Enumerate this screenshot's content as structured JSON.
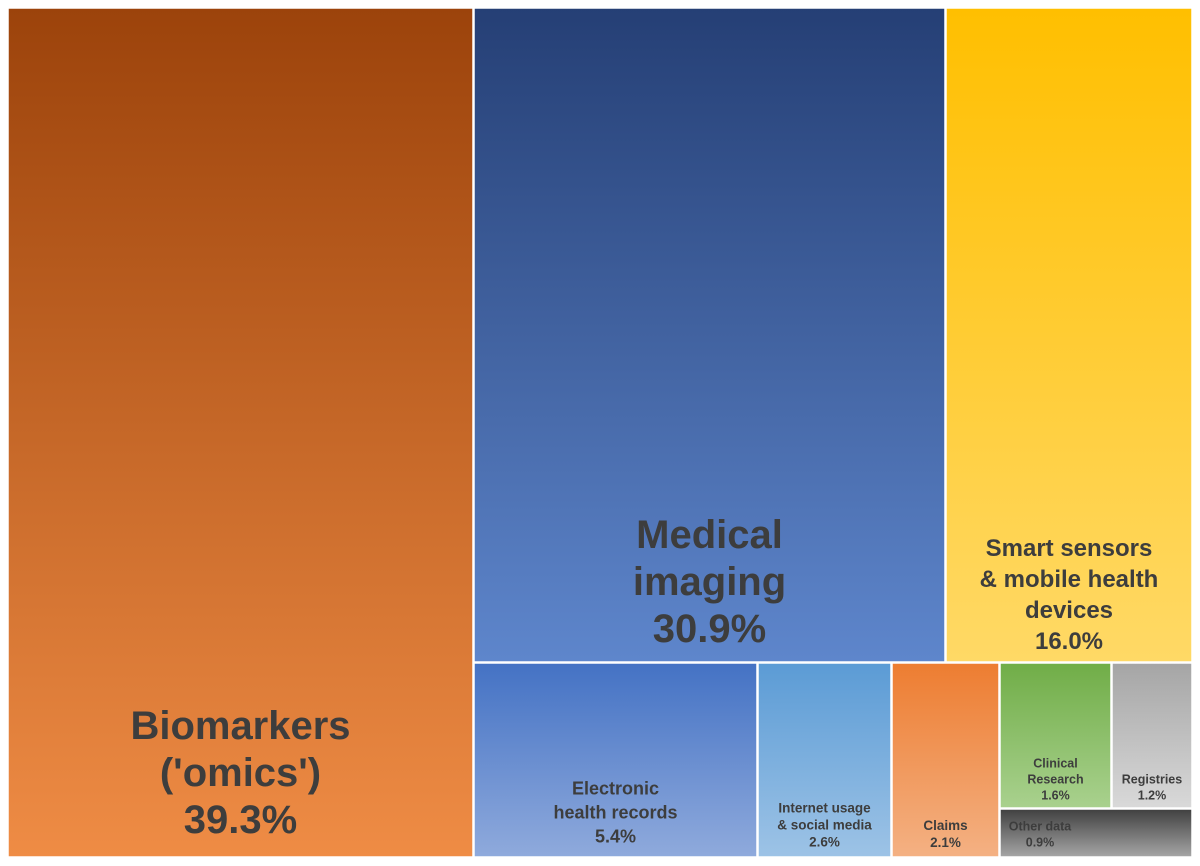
{
  "chart_data": {
    "type": "treemap",
    "unit": "%",
    "nodes": [
      {
        "key": "biomarkers",
        "lines": [
          "Biomarkers",
          "('omics')",
          "39.3%"
        ],
        "value": 39.3,
        "color_top": "#9c430b",
        "color_bottom": "#ef8c45"
      },
      {
        "key": "medical_imaging",
        "lines": [
          "Medical",
          "imaging",
          "30.9%"
        ],
        "value": 30.9,
        "color_top": "#253f75",
        "color_bottom": "#5e86cc"
      },
      {
        "key": "smart_sensors",
        "lines": [
          "Smart sensors",
          "& mobile health",
          "devices",
          "16.0%"
        ],
        "value": 16.0,
        "color_top": "#ffbf00",
        "color_bottom": "#ffd966"
      },
      {
        "key": "ehr",
        "lines": [
          "Electronic",
          "health records",
          "5.4%"
        ],
        "value": 5.4,
        "color_top": "#4472c4",
        "color_bottom": "#8faadc"
      },
      {
        "key": "internet_usage",
        "lines": [
          "Internet usage",
          "& social media",
          "2.6%"
        ],
        "value": 2.6,
        "color_top": "#5b9bd5",
        "color_bottom": "#9dc3e6"
      },
      {
        "key": "claims",
        "lines": [
          "Claims",
          "2.1%"
        ],
        "value": 2.1,
        "color_top": "#ed7d31",
        "color_bottom": "#f4b183"
      },
      {
        "key": "clinical_research",
        "lines": [
          "Clinical",
          "Research",
          "1.6%"
        ],
        "value": 1.6,
        "color_top": "#70ad47",
        "color_bottom": "#a9d18e"
      },
      {
        "key": "registries",
        "lines": [
          "Registries",
          "1.2%"
        ],
        "value": 1.2,
        "color_top": "#a5a5a5",
        "color_bottom": "#d9d9d9"
      },
      {
        "key": "other_data",
        "lines": [
          "Other data",
          "0.9%"
        ],
        "value": 0.9,
        "color_top": "#404040",
        "color_bottom": "#a6a6a6"
      }
    ]
  }
}
